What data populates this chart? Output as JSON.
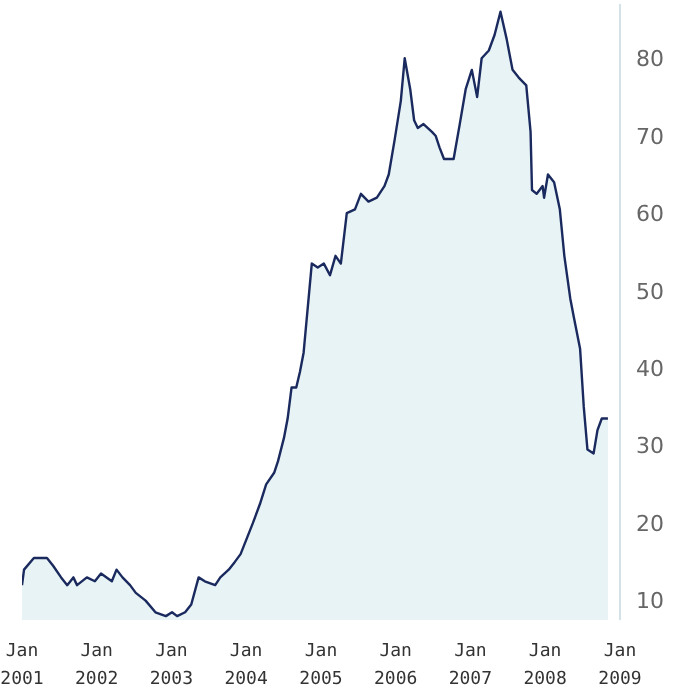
{
  "chart_data": {
    "type": "area",
    "x": [
      "2001-01-01",
      "2001-01-11",
      "2001-02-28",
      "2001-05-03",
      "2001-06-02",
      "2001-07-11",
      "2001-08-10",
      "2001-09-09",
      "2001-09-27",
      "2001-11-14",
      "2001-12-23",
      "2002-01-22",
      "2002-03-16",
      "2002-04-08",
      "2002-05-07",
      "2002-06-13",
      "2002-07-11",
      "2002-08-28",
      "2002-10-15",
      "2002-12-05",
      "2003-01-04",
      "2003-01-29",
      "2003-03-09",
      "2003-04-08",
      "2003-05-14",
      "2003-06-13",
      "2003-08-03",
      "2003-08-28",
      "2003-10-08",
      "2003-11-07",
      "2003-12-05",
      "2004-01-04",
      "2004-02-03",
      "2004-03-09",
      "2004-04-08",
      "2004-05-17",
      "2004-06-05",
      "2004-07-04",
      "2004-07-22",
      "2004-08-10",
      "2004-09-02",
      "2004-09-20",
      "2004-10-08",
      "2004-11-17",
      "2004-12-16",
      "2005-01-15",
      "2005-02-14",
      "2005-03-13",
      "2005-04-08",
      "2005-05-07",
      "2005-06-16",
      "2005-07-15",
      "2005-08-21",
      "2005-10-01",
      "2005-11-07",
      "2005-11-28",
      "2005-12-27",
      "2006-01-26",
      "2006-02-14",
      "2006-03-13",
      "2006-04-01",
      "2006-04-19",
      "2006-05-17",
      "2006-06-27",
      "2006-07-15",
      "2006-08-03",
      "2006-08-25",
      "2006-09-20",
      "2006-10-11",
      "2006-11-10",
      "2006-12-09",
      "2007-01-08",
      "2007-02-03",
      "2007-02-25",
      "2007-04-01",
      "2007-04-29",
      "2007-05-28",
      "2007-06-27",
      "2007-07-26",
      "2007-08-25",
      "2007-10-01",
      "2007-10-22",
      "2007-10-29",
      "2007-11-21",
      "2007-12-20",
      "2007-12-27",
      "2008-01-15",
      "2008-02-14",
      "2008-03-13",
      "2008-04-04",
      "2008-05-03",
      "2008-05-21",
      "2008-06-20",
      "2008-07-08",
      "2008-07-26",
      "2008-08-25",
      "2008-09-13",
      "2008-10-04",
      "2008-11-03"
    ],
    "series": [
      {
        "color": "#1a2a5e",
        "values": [
          12,
          14,
          15.5,
          15.5,
          14.5,
          13,
          12,
          13,
          12,
          13,
          12.5,
          13.5,
          12.5,
          14,
          13,
          12,
          11,
          10,
          8.5,
          8,
          8.5,
          8,
          8.5,
          9.5,
          13,
          12.5,
          12,
          13,
          14,
          15,
          16,
          18,
          20,
          22.5,
          25,
          26.5,
          28,
          31,
          33.5,
          37.5,
          37.5,
          39.5,
          42,
          53.5,
          53,
          53.5,
          52,
          54.5,
          53.5,
          60,
          60.5,
          62.5,
          61.5,
          62,
          63.5,
          65,
          69.5,
          74.5,
          80,
          76,
          72,
          71,
          71.5,
          70.5,
          70,
          68.5,
          67,
          67,
          67,
          71.5,
          76,
          78.5,
          75,
          80,
          81,
          83,
          86,
          82.5,
          78.5,
          77.5,
          76.5,
          70.5,
          63,
          62.5,
          63.5,
          62,
          65,
          64,
          60.5,
          54.5,
          49,
          46.5,
          42.5,
          35,
          29.5,
          29,
          32,
          33.5,
          33.5
        ]
      }
    ],
    "xlim": [
      "2001-01",
      "2009-01"
    ],
    "xticks": [
      {
        "value": "2001-01",
        "label": "Jan 2001"
      },
      {
        "value": "2002-01",
        "label": "Jan 2002"
      },
      {
        "value": "2003-01",
        "label": "Jan 2003"
      },
      {
        "value": "2004-01",
        "label": "Jan 2004"
      },
      {
        "value": "2005-01",
        "label": "Jan 2005"
      },
      {
        "value": "2006-01",
        "label": "Jan 2006"
      },
      {
        "value": "2007-01",
        "label": "Jan 2007"
      },
      {
        "value": "2008-01",
        "label": "Jan 2008"
      },
      {
        "value": "2009-01",
        "label": "Jan 2009"
      }
    ],
    "ylim": [
      7.5,
      87
    ],
    "yticks": [
      10,
      20,
      30,
      40,
      50,
      60,
      70,
      80
    ],
    "grid": false,
    "legend": false
  }
}
